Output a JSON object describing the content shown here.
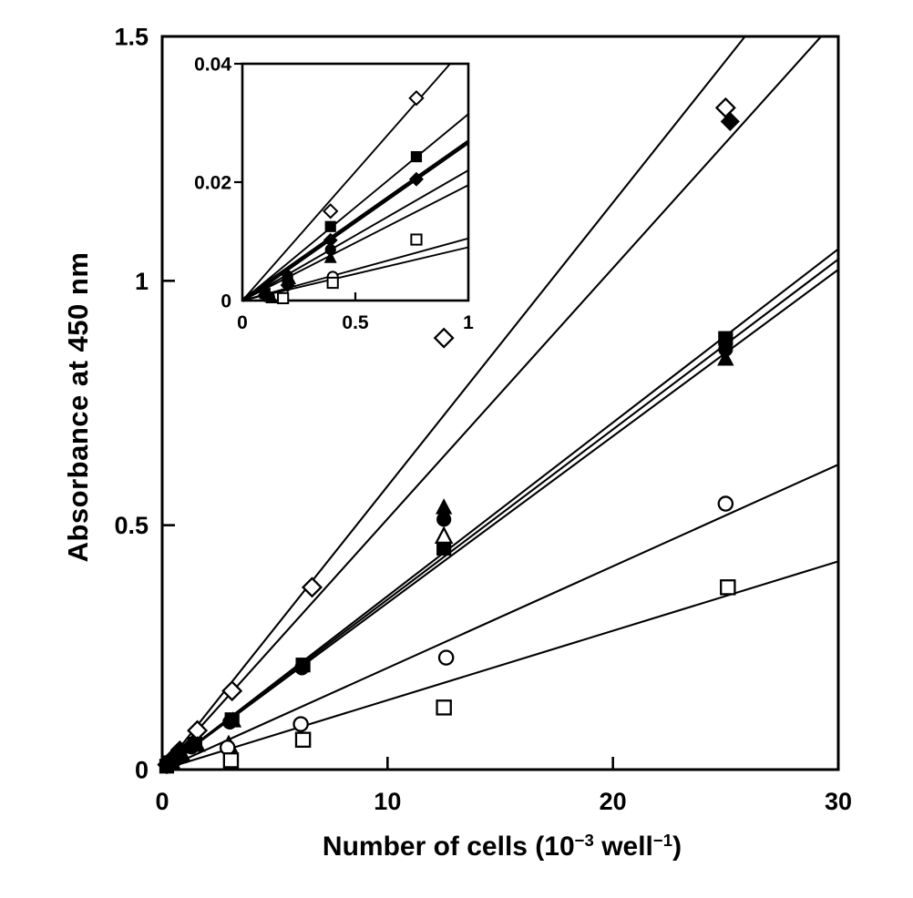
{
  "figure": {
    "background": "#ffffff",
    "ink_color": "#000000",
    "description": "Scatter plot with linear fits through origin; inset magnifies low cell-number region"
  },
  "labels": {
    "ylabel": "Absorbance at 450 nm",
    "xlabel_prefix": "Number of cells (10",
    "xlabel_sup1": "−3",
    "xlabel_mid": " well",
    "xlabel_sup2": "−1",
    "xlabel_suffix": ")"
  },
  "chart_data": [
    {
      "id": "main-plot",
      "type": "scatter",
      "title": "",
      "xlabel": "Number of cells (10^-3 well^-1)",
      "ylabel": "Absorbance at 450 nm",
      "xlim": [
        0,
        30
      ],
      "ylim": [
        0,
        1.5
      ],
      "xticks": [
        0,
        10,
        20,
        30
      ],
      "xtick_labels": [
        "0",
        "10",
        "20",
        "30"
      ],
      "yticks": [
        0,
        0.5,
        1,
        1.5
      ],
      "ytick_labels": [
        "0",
        "0.5",
        "1",
        "1.5"
      ],
      "grid": false,
      "legend": "none",
      "series": [
        {
          "name": "open-diamond",
          "marker": "diamond",
          "filled": false,
          "fit_line_slope": 0.058,
          "points": [
            [
              1.56,
              0.08
            ],
            [
              3.1,
              0.161
            ],
            [
              6.65,
              0.373
            ],
            [
              12.5,
              0.883
            ],
            [
              25,
              1.354
            ]
          ]
        },
        {
          "name": "filled-diamond",
          "marker": "diamond",
          "filled": true,
          "fit_line_slope": 0.0513,
          "points": [
            [
              0.2,
              0.01
            ],
            [
              0.39,
              0.02
            ],
            [
              0.78,
              0.04
            ],
            [
              25.2,
              1.326
            ]
          ]
        },
        {
          "name": "filled-square",
          "marker": "square",
          "filled": true,
          "fit_line_slope": 0.0355,
          "points": [
            [
              0.2,
              0.007
            ],
            [
              0.39,
              0.014
            ],
            [
              0.78,
              0.028
            ],
            [
              1.45,
              0.052
            ],
            [
              3.1,
              0.102
            ],
            [
              6.25,
              0.214
            ],
            [
              12.5,
              0.453
            ],
            [
              25,
              0.882
            ]
          ]
        },
        {
          "name": "filled-circle",
          "marker": "circle",
          "filled": true,
          "fit_line_slope": 0.0348,
          "points": [
            [
              0.3,
              0.01
            ],
            [
              0.6,
              0.021
            ],
            [
              1.3,
              0.046
            ],
            [
              3.0,
              0.097
            ],
            [
              6.2,
              0.208
            ],
            [
              12.5,
              0.512
            ],
            [
              25,
              0.86
            ]
          ]
        },
        {
          "name": "filled-triangle",
          "marker": "triangle",
          "filled": true,
          "fit_line_slope": 0.0341,
          "points": [
            [
              0.45,
              0.015
            ],
            [
              0.9,
              0.03
            ],
            [
              1.56,
              0.05
            ],
            [
              3.15,
              0.1
            ],
            [
              12.5,
              0.536
            ],
            [
              25,
              0.84
            ]
          ]
        },
        {
          "name": "open-triangle",
          "marker": "triangle",
          "filled": false,
          "fit_line_slope": null,
          "points": [
            [
              2.95,
              0.05
            ],
            [
              12.5,
              0.477
            ]
          ]
        },
        {
          "name": "open-circle",
          "marker": "circle",
          "filled": false,
          "fit_line_slope": 0.0208,
          "points": [
            [
              2.9,
              0.045
            ],
            [
              6.15,
              0.093
            ],
            [
              12.6,
              0.229
            ],
            [
              25,
              0.544
            ]
          ]
        },
        {
          "name": "open-square",
          "marker": "square",
          "filled": false,
          "fit_line_slope": 0.0142,
          "points": [
            [
              3.05,
              0.019
            ],
            [
              6.25,
              0.061
            ],
            [
              12.5,
              0.127
            ],
            [
              25.1,
              0.373
            ]
          ]
        }
      ]
    },
    {
      "id": "inset-plot",
      "type": "scatter",
      "title": "",
      "xlabel": "",
      "ylabel": "",
      "xlim": [
        0,
        1
      ],
      "ylim": [
        0,
        0.04
      ],
      "xticks": [
        0,
        0.5,
        1
      ],
      "xtick_labels": [
        "0",
        "0.5",
        "1"
      ],
      "yticks": [
        0,
        0.02,
        0.04
      ],
      "ytick_labels": [
        "0",
        "0.02",
        "0.04"
      ],
      "grid": false,
      "legend": "none",
      "series": [
        {
          "name": "open-diamond",
          "marker": "diamond",
          "filled": false,
          "fit_line_slope": 0.0435,
          "points": [
            [
              0.39,
              0.0151
            ],
            [
              0.77,
              0.0342
            ]
          ]
        },
        {
          "name": "filled-square",
          "marker": "square",
          "filled": true,
          "fit_line_slope": 0.0315,
          "points": [
            [
              0.1,
              0.0012
            ],
            [
              0.2,
              0.0032
            ],
            [
              0.39,
              0.0125
            ],
            [
              0.77,
              0.0243
            ]
          ]
        },
        {
          "name": "filled-diamond",
          "marker": "diamond",
          "filled": true,
          "thick_line": true,
          "fit_line_slope": 0.0268,
          "points": [
            [
              0.1,
              0.0009
            ],
            [
              0.2,
              0.0026
            ],
            [
              0.39,
              0.0102
            ],
            [
              0.77,
              0.0205
            ]
          ]
        },
        {
          "name": "filled-circle",
          "marker": "circle",
          "filled": true,
          "fit_line_slope": 0.022,
          "points": [
            [
              0.12,
              0.0006
            ],
            [
              0.2,
              0.0042
            ],
            [
              0.39,
              0.0086
            ]
          ]
        },
        {
          "name": "filled-triangle",
          "marker": "triangle",
          "filled": true,
          "fit_line_slope": 0.0195,
          "points": [
            [
              0.13,
              0.0004
            ],
            [
              0.21,
              0.0036
            ],
            [
              0.39,
              0.0072
            ]
          ]
        },
        {
          "name": "open-circle",
          "marker": "circle",
          "filled": false,
          "fit_line_slope": 0.0105,
          "points": [
            [
              0.4,
              0.004
            ]
          ]
        },
        {
          "name": "open-square",
          "marker": "square",
          "filled": false,
          "fit_line_slope": 0.009,
          "points": [
            [
              0.18,
              0.0004
            ],
            [
              0.4,
              0.003
            ],
            [
              0.77,
              0.0103
            ]
          ]
        }
      ]
    }
  ]
}
